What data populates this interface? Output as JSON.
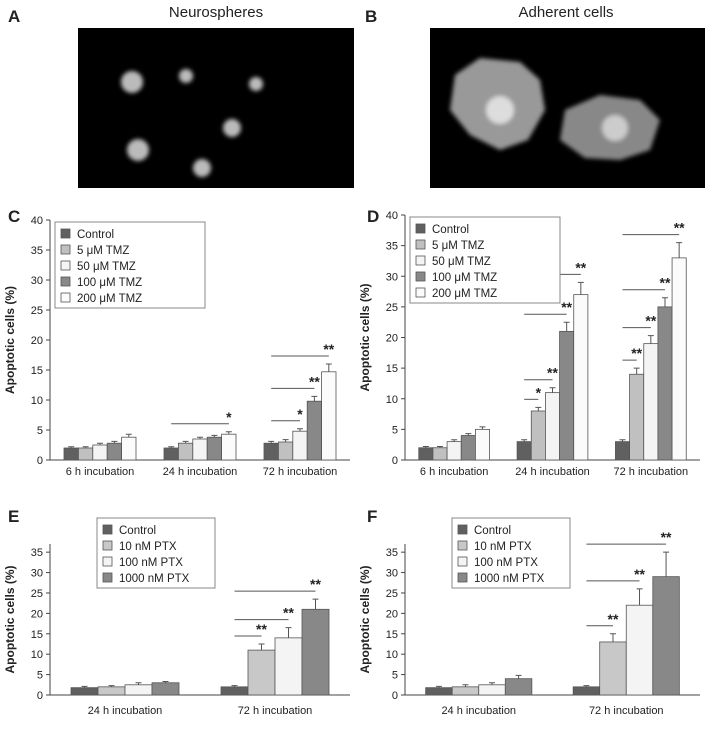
{
  "figure": {
    "panel_letters": [
      "A",
      "B",
      "C",
      "D",
      "E",
      "F"
    ],
    "image_titles": [
      "Neurospheres",
      "Adherent cells"
    ]
  },
  "chart_data": [
    {
      "type": "bar",
      "y_label": "Apoptotic cells (%)",
      "categories": [
        "6 h incubation",
        "24 h incubation",
        "72 h incubation"
      ],
      "ylim": [
        0,
        40
      ],
      "yticks": [
        0,
        5,
        10,
        15,
        20,
        25,
        30,
        35,
        40
      ],
      "legend": "upper left",
      "series": [
        {
          "name": "Control",
          "color": "#606060",
          "values": [
            2,
            2,
            2.8
          ],
          "errors": [
            0.2,
            0.2,
            0.3
          ]
        },
        {
          "name": "5 μM TMZ",
          "color": "#c0c0c0",
          "values": [
            2,
            2.8,
            3
          ],
          "errors": [
            0.2,
            0.3,
            0.4
          ]
        },
        {
          "name": "50 μM TMZ",
          "color": "#f4f4f4",
          "values": [
            2.5,
            3.5,
            4.8
          ],
          "errors": [
            0.3,
            0.3,
            0.4
          ]
        },
        {
          "name": "100 μM TMZ",
          "color": "#888888",
          "values": [
            2.8,
            3.8,
            9.8
          ],
          "errors": [
            0.3,
            0.3,
            0.8
          ]
        },
        {
          "name": "200 μM TMZ",
          "color": "#fbfbfb",
          "values": [
            3.8,
            4.3,
            14.7
          ],
          "errors": [
            0.5,
            0.4,
            1.3
          ]
        }
      ],
      "annotations": [
        {
          "label": "*",
          "category": 1,
          "series": 4
        },
        {
          "label": "*",
          "category": 2,
          "series": 2
        },
        {
          "label": "**",
          "category": 2,
          "series": 3
        },
        {
          "label": "**",
          "category": 2,
          "series": 4
        }
      ]
    },
    {
      "type": "bar",
      "y_label": "Apoptotic cells (%)",
      "categories": [
        "6 h incubation",
        "24 h incubation",
        "72 h incubation"
      ],
      "ylim": [
        0,
        40
      ],
      "yticks": [
        0,
        5,
        10,
        15,
        20,
        25,
        30,
        35,
        40
      ],
      "legend": "upper left",
      "series": [
        {
          "name": "Control",
          "color": "#606060",
          "values": [
            2,
            3,
            3
          ],
          "errors": [
            0.2,
            0.3,
            0.3
          ]
        },
        {
          "name": "5 μM TMZ",
          "color": "#c0c0c0",
          "values": [
            2,
            8,
            14
          ],
          "errors": [
            0.2,
            0.6,
            1
          ]
        },
        {
          "name": "50 μM TMZ",
          "color": "#f4f4f4",
          "values": [
            3,
            11,
            19
          ],
          "errors": [
            0.3,
            0.8,
            1.3
          ]
        },
        {
          "name": "100 μM TMZ",
          "color": "#888888",
          "values": [
            4,
            21,
            25
          ],
          "errors": [
            0.3,
            1.5,
            1.5
          ]
        },
        {
          "name": "200 μM TMZ",
          "color": "#fbfbfb",
          "values": [
            5,
            27,
            33
          ],
          "errors": [
            0.4,
            2,
            2.5
          ]
        }
      ],
      "annotations": [
        {
          "label": "*",
          "category": 1,
          "series": 1
        },
        {
          "label": "**",
          "category": 1,
          "series": 2
        },
        {
          "label": "**",
          "category": 1,
          "series": 3
        },
        {
          "label": "**",
          "category": 1,
          "series": 4
        },
        {
          "label": "**",
          "category": 2,
          "series": 1
        },
        {
          "label": "**",
          "category": 2,
          "series": 2
        },
        {
          "label": "**",
          "category": 2,
          "series": 3
        },
        {
          "label": "**",
          "category": 2,
          "series": 4
        }
      ]
    },
    {
      "type": "bar",
      "y_label": "Apoptotic cells (%)",
      "categories": [
        "24 h incubation",
        "72 h incubation"
      ],
      "ylim": [
        0,
        37
      ],
      "yticks": [
        0,
        5,
        10,
        15,
        20,
        25,
        30,
        35
      ],
      "legend": "upper left",
      "series": [
        {
          "name": "Control",
          "color": "#606060",
          "values": [
            1.8,
            2
          ],
          "errors": [
            0.3,
            0.3
          ]
        },
        {
          "name": "10 nM PTX",
          "color": "#c8c8c8",
          "values": [
            2,
            11
          ],
          "errors": [
            0.3,
            1.5
          ]
        },
        {
          "name": "100 nM PTX",
          "color": "#f4f4f4",
          "values": [
            2.5,
            14
          ],
          "errors": [
            0.5,
            2.5
          ]
        },
        {
          "name": "1000 nM PTX",
          "color": "#888888",
          "values": [
            3,
            21
          ],
          "errors": [
            0.3,
            2.5
          ]
        }
      ],
      "annotations": [
        {
          "label": "**",
          "category": 1,
          "series": 1
        },
        {
          "label": "**",
          "category": 1,
          "series": 2
        },
        {
          "label": "**",
          "category": 1,
          "series": 3
        }
      ]
    },
    {
      "type": "bar",
      "y_label": "Apoptotic cells (%)",
      "categories": [
        "24 h incubation",
        "72 h incubation"
      ],
      "ylim": [
        0,
        37
      ],
      "yticks": [
        0,
        5,
        10,
        15,
        20,
        25,
        30,
        35
      ],
      "legend": "upper left",
      "series": [
        {
          "name": "Control",
          "color": "#606060",
          "values": [
            1.8,
            2
          ],
          "errors": [
            0.3,
            0.3
          ]
        },
        {
          "name": "10 nM PTX",
          "color": "#c8c8c8",
          "values": [
            2,
            13
          ],
          "errors": [
            0.5,
            2
          ]
        },
        {
          "name": "100 nM PTX",
          "color": "#f4f4f4",
          "values": [
            2.5,
            22
          ],
          "errors": [
            0.5,
            4
          ]
        },
        {
          "name": "1000 nM PTX",
          "color": "#888888",
          "values": [
            4,
            29
          ],
          "errors": [
            0.8,
            6
          ]
        }
      ],
      "annotations": [
        {
          "label": "**",
          "category": 1,
          "series": 1
        },
        {
          "label": "**",
          "category": 1,
          "series": 2
        },
        {
          "label": "**",
          "category": 1,
          "series": 3
        }
      ]
    }
  ]
}
